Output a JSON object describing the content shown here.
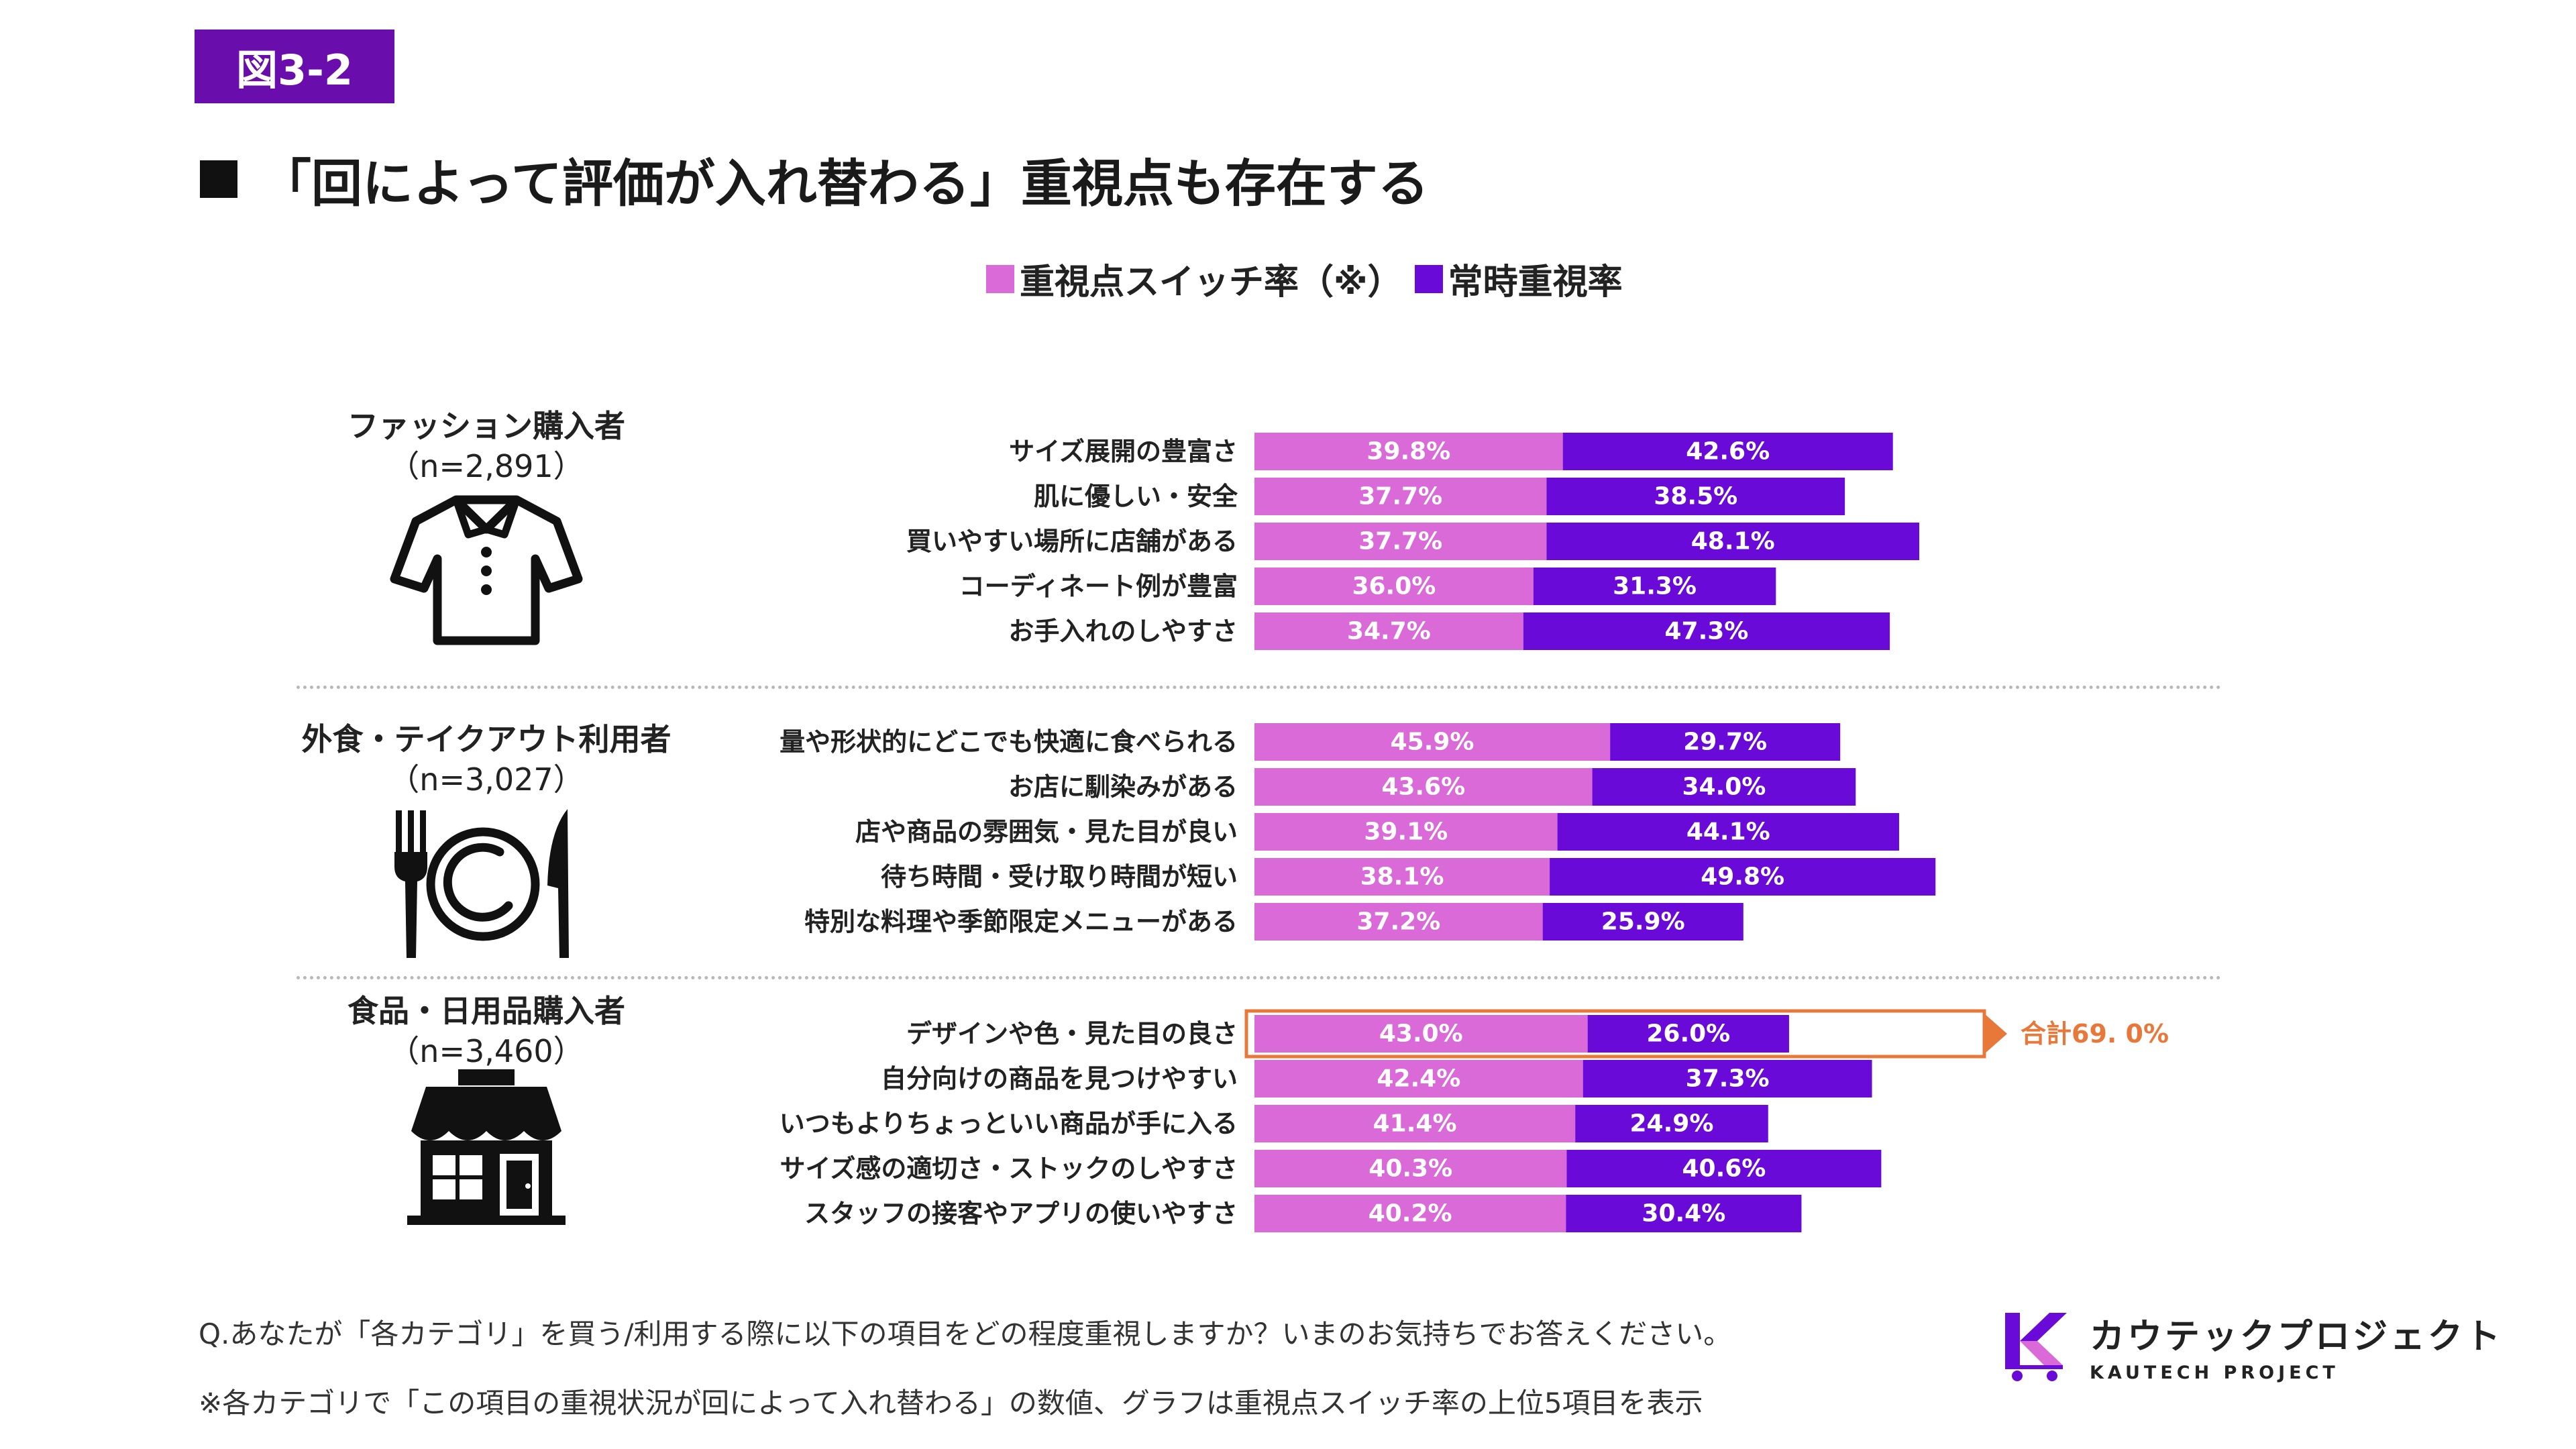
{
  "figure_label": "図3-2",
  "headline": "「回によって評価が入れ替わる」重視点も存在する",
  "colors": {
    "switch": "#d96ad8",
    "always": "#6a0ad8",
    "accent": "#e8773a",
    "badge": "#6a0dad"
  },
  "chart_data": {
    "type": "bar",
    "orientation": "horizontal",
    "stacked": true,
    "legend_position": "top",
    "xlim": [
      0,
      100
    ],
    "series_names": [
      "重視点スイッチ率（※）",
      "常時重視率"
    ],
    "groups": [
      {
        "name": "ファッション購入者",
        "n": "（n=2,891）",
        "icon": "shirt-icon",
        "categories": [
          "サイズ展開の豊富さ",
          "肌に優しい・安全",
          "買いやすい場所に店舗がある",
          "コーディネート例が豊富",
          "お手入れのしやすさ"
        ],
        "series": [
          {
            "name": "重視点スイッチ率（※）",
            "values": [
              39.8,
              37.7,
              37.7,
              36.0,
              34.7
            ],
            "labels": [
              "39.8%",
              "37.7%",
              "37.7%",
              "36.0%",
              "34.7%"
            ]
          },
          {
            "name": "常時重視率",
            "values": [
              42.6,
              38.5,
              48.1,
              31.3,
              47.3
            ],
            "labels": [
              "42.6%",
              "38.5%",
              "48.1%",
              "31.3%",
              "47.3%"
            ]
          }
        ]
      },
      {
        "name": "外食・テイクアウト利用者",
        "n": "（n=3,027）",
        "icon": "dining-icon",
        "categories": [
          "量や形状的にどこでも快適に食べられる",
          "お店に馴染みがある",
          "店や商品の雰囲気・見た目が良い",
          "待ち時間・受け取り時間が短い",
          "特別な料理や季節限定メニューがある"
        ],
        "series": [
          {
            "name": "重視点スイッチ率（※）",
            "values": [
              45.9,
              43.6,
              39.1,
              38.1,
              37.2
            ],
            "labels": [
              "45.9%",
              "43.6%",
              "39.1%",
              "38.1%",
              "37.2%"
            ]
          },
          {
            "name": "常時重視率",
            "values": [
              29.7,
              34.0,
              44.1,
              49.8,
              25.9
            ],
            "labels": [
              "29.7%",
              "34.0%",
              "44.1%",
              "49.8%",
              "25.9%"
            ]
          }
        ]
      },
      {
        "name": "食品・日用品購入者",
        "n": "（n=3,460）",
        "icon": "store-icon",
        "categories": [
          "デザインや色・見た目の良さ",
          "自分向けの商品を見つけやすい",
          "いつもよりちょっといい商品が手に入る",
          "サイズ感の適切さ・ストックのしやすさ",
          "スタッフの接客やアプリの使いやすさ"
        ],
        "series": [
          {
            "name": "重視点スイッチ率（※）",
            "values": [
              43.0,
              42.4,
              41.4,
              40.3,
              40.2
            ],
            "labels": [
              "43.0%",
              "42.4%",
              "41.4%",
              "40.3%",
              "40.2%"
            ]
          },
          {
            "name": "常時重視率",
            "values": [
              26.0,
              37.3,
              24.9,
              40.6,
              30.4
            ],
            "labels": [
              "26.0%",
              "37.3%",
              "24.9%",
              "40.6%",
              "30.4%"
            ]
          }
        ]
      }
    ],
    "annotation": {
      "group": 2,
      "row": 0,
      "text": "合計69. 0%"
    }
  },
  "footnotes": [
    "Q.あなたが「各カテゴリ」を買う/利用する際に以下の項目をどの程度重視しますか？いまのお気持ちでお答えください。",
    "※各カテゴリで「この項目の重視状況が回によって入れ替わる」の数値、グラフは重視点スイッチ率の上位5項目を表示"
  ],
  "logo": {
    "jp": "カウテックプロジェクト",
    "en": "KAUTECH PROJECT"
  }
}
